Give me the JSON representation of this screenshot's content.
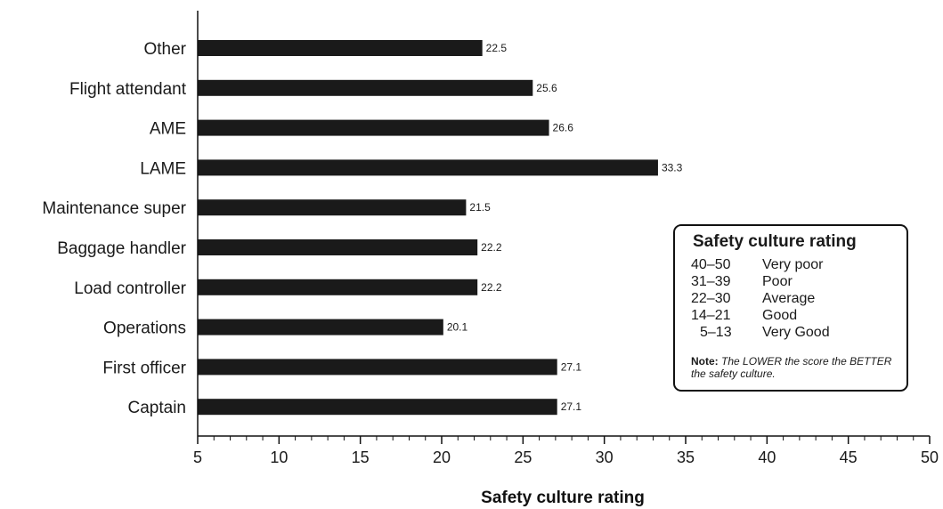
{
  "chart_data": {
    "type": "bar",
    "orientation": "horizontal",
    "categories": [
      "Other",
      "Flight attendant",
      "AME",
      "LAME",
      "Maintenance super",
      "Baggage handler",
      "Load controller",
      "Operations",
      "First officer",
      "Captain"
    ],
    "values": [
      22.5,
      25.6,
      26.6,
      33.3,
      21.5,
      22.2,
      22.2,
      20.1,
      27.1,
      27.1
    ],
    "value_labels": [
      "22.5",
      "25.6",
      "26.6",
      "33.3",
      "21.5",
      "22.2",
      "22.2",
      "20.1",
      "27.1",
      "27.1"
    ],
    "xlabel": "Safety culture rating",
    "xlim": [
      5,
      50
    ],
    "xticks": [
      5,
      10,
      15,
      20,
      25,
      30,
      35,
      40,
      45,
      50
    ],
    "grid": false,
    "bar_color": "#1a1a1a"
  },
  "legend": {
    "title": "Safety culture rating",
    "rows": [
      {
        "range": "40–50",
        "desc": "Very poor"
      },
      {
        "range": "31–39",
        "desc": "Poor"
      },
      {
        "range": "22–30",
        "desc": "Average"
      },
      {
        "range": "14–21",
        "desc": "Good"
      },
      {
        "range": "5–13",
        "desc": "Very Good"
      }
    ],
    "note_prefix": "Note:",
    "note_text": "The LOWER the score the BETTER the safety culture."
  }
}
